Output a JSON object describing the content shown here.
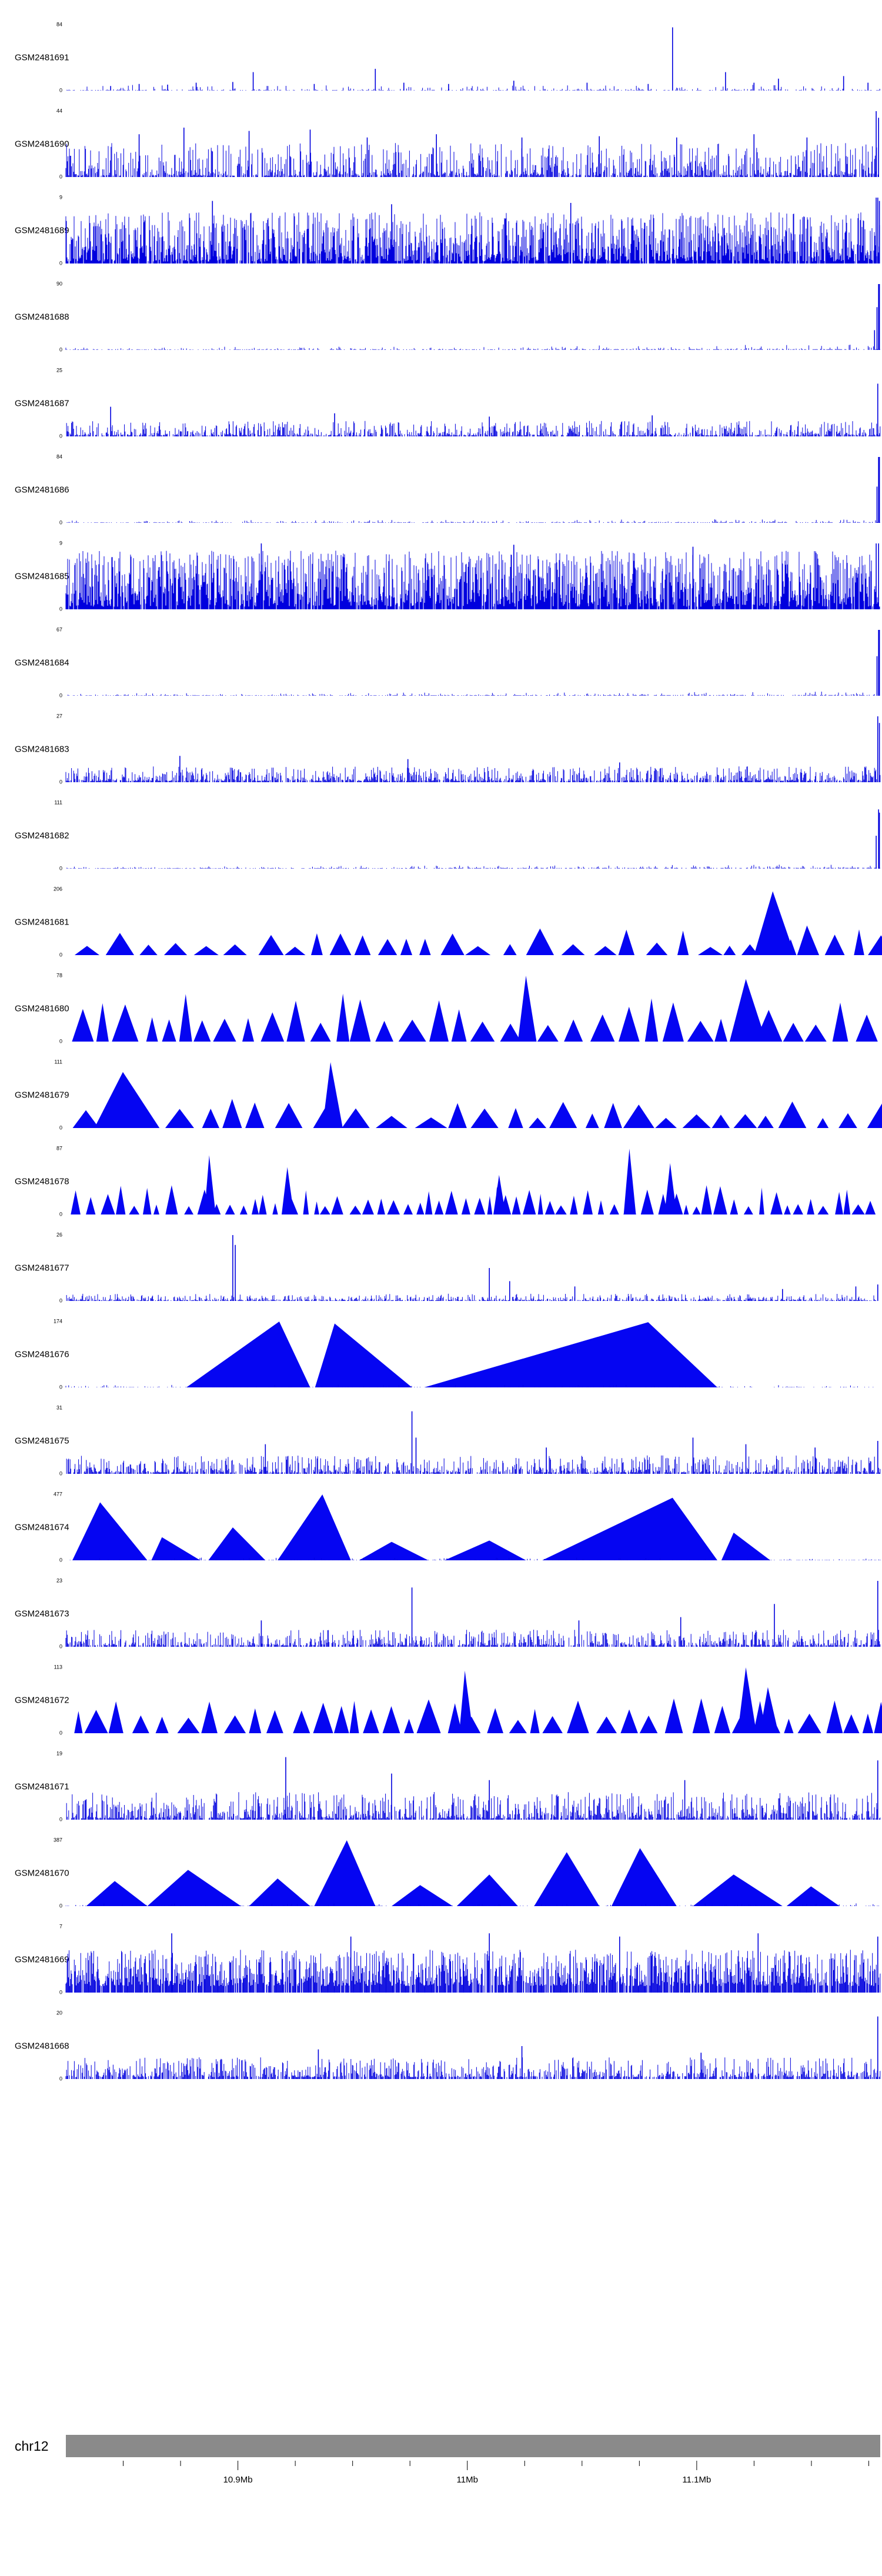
{
  "colors": {
    "signal": "#0000DE",
    "peak_fill": "#0505F2",
    "ideogram": "#8A8A8A",
    "axis_text": "#000000",
    "background": "#FFFFFF"
  },
  "axis": {
    "chromosome": "chr12",
    "start_mb": 10.825,
    "end_mb": 11.18,
    "minor_step_mb": 0.025,
    "ticks": [
      {
        "label": "10.9Mb",
        "mb": 10.9
      },
      {
        "label": "11Mb",
        "mb": 11.0
      },
      {
        "label": "11.1Mb",
        "mb": 11.1
      }
    ]
  },
  "chart_data": {
    "type": "area",
    "title": "",
    "description": "Stacked genome-browser read-coverage signal tracks for 24 GEO samples over chr12 ~10.83-11.18 Mb; each track shows coverage from 0 to its own y-max, drawn in blue. Heights of features/peaks are fractions of each track's y-max; x positions are fractions of the plotted region width.",
    "region": {
      "chromosome": "chr12",
      "approx_start_mb": 10.825,
      "approx_end_mb": 11.18
    },
    "tracks": [
      {
        "label": "GSM2481691",
        "ymax": 84,
        "ymin": 0,
        "pattern": "sparse",
        "seed": 101,
        "amp": 0.08,
        "features": [
          {
            "x": 0.055,
            "h": 0.07
          },
          {
            "x": 0.09,
            "h": 0.1
          },
          {
            "x": 0.125,
            "h": 0.09
          },
          {
            "x": 0.16,
            "h": 0.12
          },
          {
            "x": 0.205,
            "h": 0.13
          },
          {
            "x": 0.23,
            "h": 0.28
          },
          {
            "x": 0.305,
            "h": 0.1
          },
          {
            "x": 0.38,
            "h": 0.33
          },
          {
            "x": 0.415,
            "h": 0.12
          },
          {
            "x": 0.47,
            "h": 0.1
          },
          {
            "x": 0.55,
            "h": 0.15
          },
          {
            "x": 0.64,
            "h": 0.12
          },
          {
            "x": 0.715,
            "h": 0.1
          },
          {
            "x": 0.745,
            "h": 0.96
          },
          {
            "x": 0.81,
            "h": 0.28
          },
          {
            "x": 0.845,
            "h": 0.12
          },
          {
            "x": 0.875,
            "h": 0.18
          },
          {
            "x": 0.955,
            "h": 0.22
          },
          {
            "x": 0.985,
            "h": 0.12
          }
        ]
      },
      {
        "label": "GSM2481690",
        "ymax": 44,
        "ymin": 0,
        "pattern": "dense",
        "seed": 102,
        "amp": 0.5,
        "pow": 2.4,
        "gap": 0.25,
        "base": 0.02,
        "features": [
          {
            "x": 0.09,
            "h": 0.65
          },
          {
            "x": 0.145,
            "h": 0.75
          },
          {
            "x": 0.225,
            "h": 0.7
          },
          {
            "x": 0.3,
            "h": 0.72
          },
          {
            "x": 0.37,
            "h": 0.6
          },
          {
            "x": 0.455,
            "h": 0.65
          },
          {
            "x": 0.56,
            "h": 0.6
          },
          {
            "x": 0.655,
            "h": 0.62
          },
          {
            "x": 0.75,
            "h": 0.6
          },
          {
            "x": 0.845,
            "h": 0.65
          },
          {
            "x": 0.91,
            "h": 0.6
          },
          {
            "x": 0.995,
            "h": 1.0
          },
          {
            "x": 0.998,
            "h": 0.9
          }
        ]
      },
      {
        "label": "GSM2481689",
        "ymax": 9,
        "ymin": 0,
        "pattern": "dense",
        "seed": 103,
        "amp": 0.75,
        "pow": 1.6,
        "gap": 0.12,
        "base": 0.03,
        "step": 1.0,
        "features": [
          {
            "x": 0.18,
            "h": 0.95
          },
          {
            "x": 0.4,
            "h": 0.9
          },
          {
            "x": 0.62,
            "h": 0.92
          },
          {
            "x": 0.995,
            "h": 1.0
          },
          {
            "x": 0.997,
            "h": 1.0
          },
          {
            "x": 0.999,
            "h": 0.95
          }
        ]
      },
      {
        "label": "GSM2481688",
        "ymax": 90,
        "ymin": 0,
        "pattern": "flat",
        "seed": 104,
        "amp": 0.035,
        "ramp": 1.0,
        "features": [
          {
            "x": 0.993,
            "h": 0.3
          },
          {
            "x": 0.996,
            "h": 0.65
          },
          {
            "x": 0.998,
            "h": 1.0
          },
          {
            "x": 0.999,
            "h": 1.0
          }
        ]
      },
      {
        "label": "GSM2481687",
        "ymax": 25,
        "ymin": 0,
        "pattern": "dense",
        "seed": 105,
        "amp": 0.22,
        "pow": 2.6,
        "gap": 0.3,
        "base": 0.015,
        "features": [
          {
            "x": 0.055,
            "h": 0.45
          },
          {
            "x": 0.33,
            "h": 0.35
          },
          {
            "x": 0.52,
            "h": 0.3
          },
          {
            "x": 0.72,
            "h": 0.32
          },
          {
            "x": 0.997,
            "h": 0.8
          }
        ]
      },
      {
        "label": "GSM2481686",
        "ymax": 84,
        "ymin": 0,
        "pattern": "flat",
        "seed": 106,
        "amp": 0.03,
        "ramp": 0.6,
        "features": [
          {
            "x": 0.996,
            "h": 0.55
          },
          {
            "x": 0.998,
            "h": 1.0
          },
          {
            "x": 0.999,
            "h": 1.0
          }
        ]
      },
      {
        "label": "GSM2481685",
        "ymax": 9,
        "ymin": 0,
        "pattern": "dense",
        "seed": 107,
        "amp": 0.85,
        "pow": 1.4,
        "gap": 0.1,
        "base": 0.04,
        "step": 1.0,
        "features": [
          {
            "x": 0.24,
            "h": 1.0
          },
          {
            "x": 0.55,
            "h": 0.98
          },
          {
            "x": 0.77,
            "h": 0.95
          },
          {
            "x": 0.995,
            "h": 1.0
          },
          {
            "x": 0.998,
            "h": 1.0
          }
        ]
      },
      {
        "label": "GSM2481684",
        "ymax": 67,
        "ymin": 0,
        "pattern": "flat",
        "seed": 108,
        "amp": 0.03,
        "ramp": 0.8,
        "features": [
          {
            "x": 0.996,
            "h": 0.6
          },
          {
            "x": 0.998,
            "h": 1.0
          },
          {
            "x": 0.999,
            "h": 1.0
          }
        ]
      },
      {
        "label": "GSM2481683",
        "ymax": 27,
        "ymin": 0,
        "pattern": "dense",
        "seed": 109,
        "amp": 0.22,
        "pow": 2.4,
        "gap": 0.25,
        "base": 0.02,
        "features": [
          {
            "x": 0.14,
            "h": 0.4
          },
          {
            "x": 0.42,
            "h": 0.35
          },
          {
            "x": 0.68,
            "h": 0.3
          },
          {
            "x": 0.997,
            "h": 1.0
          },
          {
            "x": 0.999,
            "h": 0.9
          }
        ]
      },
      {
        "label": "GSM2481682",
        "ymax": 111,
        "ymin": 0,
        "pattern": "flat",
        "seed": 110,
        "amp": 0.025,
        "ramp": 1.2,
        "features": [
          {
            "x": 0.995,
            "h": 0.5
          },
          {
            "x": 0.998,
            "h": 0.9
          },
          {
            "x": 0.999,
            "h": 0.85
          }
        ]
      },
      {
        "label": "GSM2481681",
        "ymax": 206,
        "ymin": 0,
        "pattern": "triangles",
        "seed": 111,
        "wmin": 0.012,
        "wmax": 0.035,
        "hmin": 0.12,
        "hmax": 0.42,
        "gapw": 0.016,
        "peaks": [
          {
            "s": 0.845,
            "p": 0.868,
            "e": 0.895,
            "h": 0.97
          },
          {
            "s": 0.898,
            "p": 0.91,
            "e": 0.925,
            "h": 0.45
          }
        ]
      },
      {
        "label": "GSM2481680",
        "ymax": 78,
        "ymin": 0,
        "pattern": "triangles",
        "seed": 112,
        "wmin": 0.012,
        "wmax": 0.034,
        "hmin": 0.25,
        "hmax": 0.75,
        "gapw": 0.01,
        "peaks": [
          {
            "s": 0.555,
            "p": 0.565,
            "e": 0.578,
            "h": 1.0
          },
          {
            "s": 0.815,
            "p": 0.835,
            "e": 0.86,
            "h": 0.95
          }
        ]
      },
      {
        "label": "GSM2481679",
        "ymax": 111,
        "ymin": 0,
        "pattern": "triangles",
        "seed": 113,
        "wmin": 0.014,
        "wmax": 0.04,
        "hmin": 0.15,
        "hmax": 0.45,
        "gapw": 0.014,
        "peaks": [
          {
            "s": 0.035,
            "p": 0.07,
            "e": 0.115,
            "h": 0.85
          },
          {
            "s": 0.315,
            "p": 0.325,
            "e": 0.34,
            "h": 1.0
          }
        ]
      },
      {
        "label": "GSM2481678",
        "ymax": 87,
        "ymin": 0,
        "pattern": "triangles",
        "seed": 114,
        "wmin": 0.006,
        "wmax": 0.018,
        "hmin": 0.12,
        "hmax": 0.45,
        "gapw": 0.008,
        "peaks": [
          {
            "s": 0.17,
            "p": 0.176,
            "e": 0.184,
            "h": 0.9
          },
          {
            "s": 0.265,
            "p": 0.272,
            "e": 0.28,
            "h": 0.72
          },
          {
            "s": 0.525,
            "p": 0.532,
            "e": 0.54,
            "h": 0.6
          },
          {
            "s": 0.685,
            "p": 0.692,
            "e": 0.7,
            "h": 1.0
          },
          {
            "s": 0.735,
            "p": 0.742,
            "e": 0.75,
            "h": 0.78
          }
        ]
      },
      {
        "label": "GSM2481677",
        "ymax": 26,
        "ymin": 0,
        "pattern": "dense",
        "seed": 115,
        "amp": 0.1,
        "pow": 3,
        "gap": 0.35,
        "base": 0.01,
        "features": [
          {
            "x": 0.205,
            "h": 1.0
          },
          {
            "x": 0.208,
            "h": 0.85
          },
          {
            "x": 0.52,
            "h": 0.5
          },
          {
            "x": 0.545,
            "h": 0.3
          },
          {
            "x": 0.625,
            "h": 0.22
          },
          {
            "x": 0.88,
            "h": 0.18
          },
          {
            "x": 0.97,
            "h": 0.22
          },
          {
            "x": 0.997,
            "h": 0.25
          }
        ]
      },
      {
        "label": "GSM2481676",
        "ymax": 174,
        "ymin": 0,
        "pattern": "peaks",
        "seed": 116,
        "peaks": [
          {
            "s": 0.148,
            "p": 0.262,
            "e": 0.3,
            "h": 1.0
          },
          {
            "s": 0.306,
            "p": 0.33,
            "e": 0.425,
            "h": 0.97
          },
          {
            "s": 0.44,
            "p": 0.715,
            "e": 0.8,
            "h": 0.99
          }
        ]
      },
      {
        "label": "GSM2481675",
        "ymax": 31,
        "ymin": 0,
        "pattern": "dense",
        "seed": 117,
        "amp": 0.26,
        "pow": 2.4,
        "gap": 0.3,
        "base": 0.02,
        "features": [
          {
            "x": 0.245,
            "h": 0.45
          },
          {
            "x": 0.425,
            "h": 0.95
          },
          {
            "x": 0.43,
            "h": 0.55
          },
          {
            "x": 0.59,
            "h": 0.4
          },
          {
            "x": 0.77,
            "h": 0.55
          },
          {
            "x": 0.835,
            "h": 0.45
          },
          {
            "x": 0.92,
            "h": 0.4
          },
          {
            "x": 0.997,
            "h": 0.5
          }
        ]
      },
      {
        "label": "GSM2481674",
        "ymax": 477,
        "ymin": 0,
        "pattern": "peaks",
        "seed": 118,
        "peaks": [
          {
            "s": 0.008,
            "p": 0.042,
            "e": 0.1,
            "h": 0.88
          },
          {
            "s": 0.105,
            "p": 0.118,
            "e": 0.165,
            "h": 0.35
          },
          {
            "s": 0.175,
            "p": 0.205,
            "e": 0.245,
            "h": 0.5
          },
          {
            "s": 0.26,
            "p": 0.315,
            "e": 0.35,
            "h": 1.0
          },
          {
            "s": 0.36,
            "p": 0.4,
            "e": 0.445,
            "h": 0.28
          },
          {
            "s": 0.465,
            "p": 0.52,
            "e": 0.565,
            "h": 0.3
          },
          {
            "s": 0.585,
            "p": 0.745,
            "e": 0.8,
            "h": 0.95
          },
          {
            "s": 0.805,
            "p": 0.82,
            "e": 0.865,
            "h": 0.42
          }
        ]
      },
      {
        "label": "GSM2481673",
        "ymax": 23,
        "ymin": 0,
        "pattern": "dense",
        "seed": 119,
        "amp": 0.24,
        "pow": 2.4,
        "gap": 0.3,
        "base": 0.02,
        "features": [
          {
            "x": 0.24,
            "h": 0.4
          },
          {
            "x": 0.425,
            "h": 0.9
          },
          {
            "x": 0.63,
            "h": 0.4
          },
          {
            "x": 0.755,
            "h": 0.45
          },
          {
            "x": 0.87,
            "h": 0.65
          },
          {
            "x": 0.997,
            "h": 1.0
          }
        ]
      },
      {
        "label": "GSM2481672",
        "ymax": 113,
        "ymin": 0,
        "pattern": "triangles",
        "seed": 120,
        "wmin": 0.01,
        "wmax": 0.03,
        "hmin": 0.2,
        "hmax": 0.55,
        "gapw": 0.012,
        "peaks": [
          {
            "s": 0.483,
            "p": 0.49,
            "e": 0.5,
            "h": 0.95
          },
          {
            "s": 0.825,
            "p": 0.835,
            "e": 0.848,
            "h": 1.0
          },
          {
            "s": 0.852,
            "p": 0.862,
            "e": 0.875,
            "h": 0.7
          }
        ]
      },
      {
        "label": "GSM2481671",
        "ymax": 19,
        "ymin": 0,
        "pattern": "dense",
        "seed": 121,
        "amp": 0.4,
        "pow": 2.2,
        "gap": 0.25,
        "base": 0.02,
        "features": [
          {
            "x": 0.27,
            "h": 0.95
          },
          {
            "x": 0.4,
            "h": 0.7
          },
          {
            "x": 0.52,
            "h": 0.6
          },
          {
            "x": 0.76,
            "h": 0.6
          },
          {
            "x": 0.997,
            "h": 0.9
          }
        ]
      },
      {
        "label": "GSM2481670",
        "ymax": 387,
        "ymin": 0,
        "pattern": "peaks",
        "seed": 122,
        "peaks": [
          {
            "s": 0.025,
            "p": 0.06,
            "e": 0.1,
            "h": 0.38
          },
          {
            "s": 0.1,
            "p": 0.15,
            "e": 0.215,
            "h": 0.55
          },
          {
            "s": 0.225,
            "p": 0.26,
            "e": 0.3,
            "h": 0.42
          },
          {
            "s": 0.305,
            "p": 0.345,
            "e": 0.38,
            "h": 1.0
          },
          {
            "s": 0.4,
            "p": 0.435,
            "e": 0.475,
            "h": 0.32
          },
          {
            "s": 0.48,
            "p": 0.52,
            "e": 0.555,
            "h": 0.48
          },
          {
            "s": 0.575,
            "p": 0.615,
            "e": 0.655,
            "h": 0.82
          },
          {
            "s": 0.67,
            "p": 0.705,
            "e": 0.75,
            "h": 0.88
          },
          {
            "s": 0.77,
            "p": 0.82,
            "e": 0.88,
            "h": 0.48
          },
          {
            "s": 0.885,
            "p": 0.915,
            "e": 0.95,
            "h": 0.3
          }
        ]
      },
      {
        "label": "GSM2481669",
        "ymax": 7,
        "ymin": 0,
        "pattern": "dense",
        "seed": 123,
        "amp": 0.55,
        "pow": 1.6,
        "gap": 0.12,
        "base": 0.1,
        "step": 1.1,
        "features": [
          {
            "x": 0.13,
            "h": 0.9
          },
          {
            "x": 0.35,
            "h": 0.85
          },
          {
            "x": 0.52,
            "h": 0.9
          },
          {
            "x": 0.68,
            "h": 0.85
          },
          {
            "x": 0.85,
            "h": 0.9
          },
          {
            "x": 0.997,
            "h": 0.85
          }
        ]
      },
      {
        "label": "GSM2481668",
        "ymax": 20,
        "ymin": 0,
        "pattern": "dense",
        "seed": 124,
        "amp": 0.3,
        "pow": 2.4,
        "gap": 0.3,
        "base": 0.03,
        "features": [
          {
            "x": 0.31,
            "h": 0.45
          },
          {
            "x": 0.56,
            "h": 0.5
          },
          {
            "x": 0.78,
            "h": 0.4
          },
          {
            "x": 0.997,
            "h": 0.95
          }
        ]
      }
    ]
  }
}
